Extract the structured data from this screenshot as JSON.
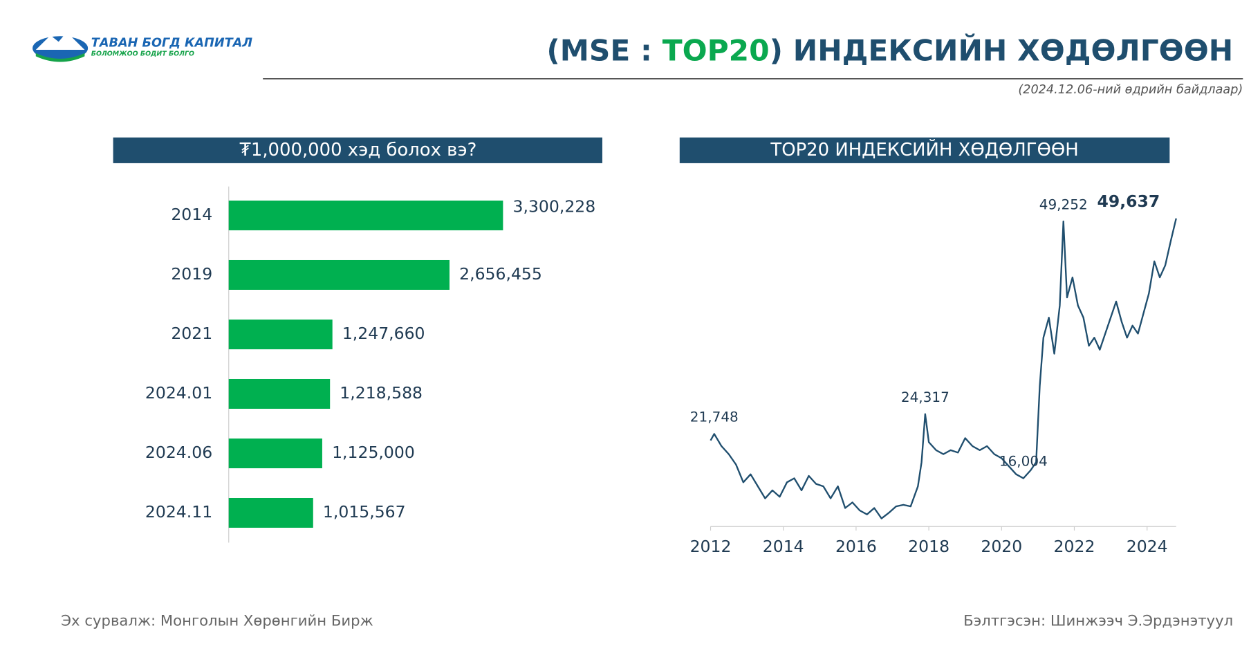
{
  "header": {
    "logo_name": "ТАВАН БОГД КАПИТАЛ",
    "logo_slogan": "БОЛОМЖОО БОДИТ БОЛГО",
    "title": [
      "(MSE : ",
      "TOP20",
      ") ИНДЕКСИЙН ХӨДӨЛГӨӨН"
    ],
    "subtitle": "(2024.12.06-ний өдрийн байдлаар)"
  },
  "footer": {
    "source": "Эх сурвалж:  Монголын Хөрөнгийн Бирж",
    "author": "Бэлтгэсэн: Шинжээч Э.Эрдэнэтуул"
  },
  "chart_data": [
    {
      "type": "hbar",
      "title": "₮1,000,000 хэд болох вэ?",
      "categories": [
        "2014",
        "2019",
        "2021",
        "2024.01",
        "2024.06",
        "2024.11"
      ],
      "values": [
        3300228,
        2656455,
        1247660,
        1218588,
        1125000,
        1015567
      ],
      "value_labels": [
        "3,300,228",
        "2,656,455",
        "1,247,660",
        "1,218,588",
        "1,125,000",
        "1,015,567"
      ],
      "color": "#00b050"
    },
    {
      "type": "line",
      "title": "TOP20 ИНДЕКСИЙН ХӨДӨЛГӨӨН",
      "color": "#1f4e6e",
      "x": [
        2012.0,
        2012.1,
        2012.3,
        2012.5,
        2012.7,
        2012.9,
        2013.1,
        2013.3,
        2013.5,
        2013.7,
        2013.9,
        2014.1,
        2014.3,
        2014.5,
        2014.7,
        2014.9,
        2015.1,
        2015.3,
        2015.5,
        2015.7,
        2015.9,
        2016.1,
        2016.3,
        2016.5,
        2016.7,
        2016.9,
        2017.1,
        2017.3,
        2017.5,
        2017.7,
        2017.8,
        2017.9,
        2018.0,
        2018.2,
        2018.4,
        2018.6,
        2018.8,
        2019.0,
        2019.2,
        2019.4,
        2019.6,
        2019.8,
        2020.0,
        2020.2,
        2020.4,
        2020.6,
        2020.8,
        2020.95,
        2021.05,
        2021.15,
        2021.3,
        2021.45,
        2021.6,
        2021.7,
        2021.8,
        2021.95,
        2022.1,
        2022.25,
        2022.4,
        2022.55,
        2022.7,
        2022.85,
        2023.0,
        2023.15,
        2023.3,
        2023.45,
        2023.6,
        2023.75,
        2023.9,
        2024.05,
        2024.2,
        2024.35,
        2024.5,
        2024.65,
        2024.8
      ],
      "values": [
        20900,
        21748,
        20164,
        19124,
        17772,
        15484,
        16524,
        14964,
        13404,
        14444,
        13612,
        15484,
        16004,
        14444,
        16316,
        15276,
        14964,
        13404,
        14964,
        12156,
        12884,
        11844,
        11324,
        12156,
        10804,
        11532,
        12364,
        12572,
        12364,
        14964,
        18084,
        24317,
        20684,
        19644,
        19124,
        19644,
        19332,
        21204,
        20164,
        19644,
        20164,
        19124,
        18604,
        17564,
        16524,
        16004,
        17044,
        18084,
        27964,
        34204,
        36804,
        32124,
        38364,
        49252,
        39404,
        42004,
        38364,
        36804,
        33164,
        34204,
        32644,
        34724,
        36804,
        38884,
        36284,
        34204,
        35764,
        34724,
        37324,
        39924,
        44084,
        42004,
        43564,
        46684,
        49637
      ],
      "xlim": [
        2012,
        2024.8
      ],
      "xticks": [
        2012,
        2014,
        2016,
        2018,
        2020,
        2022,
        2024
      ],
      "ylim": [
        9760,
        52000
      ],
      "annotations": [
        {
          "x": 2012.1,
          "value": 21748,
          "label": "21,748"
        },
        {
          "x": 2017.9,
          "value": 24317,
          "label": "24,317"
        },
        {
          "x": 2020.6,
          "value": 16004,
          "label": "16,004"
        },
        {
          "x": 2021.7,
          "value": 49252,
          "label": "49,252"
        },
        {
          "x": 2024.8,
          "value": 49637,
          "label": "49,637"
        }
      ]
    }
  ]
}
